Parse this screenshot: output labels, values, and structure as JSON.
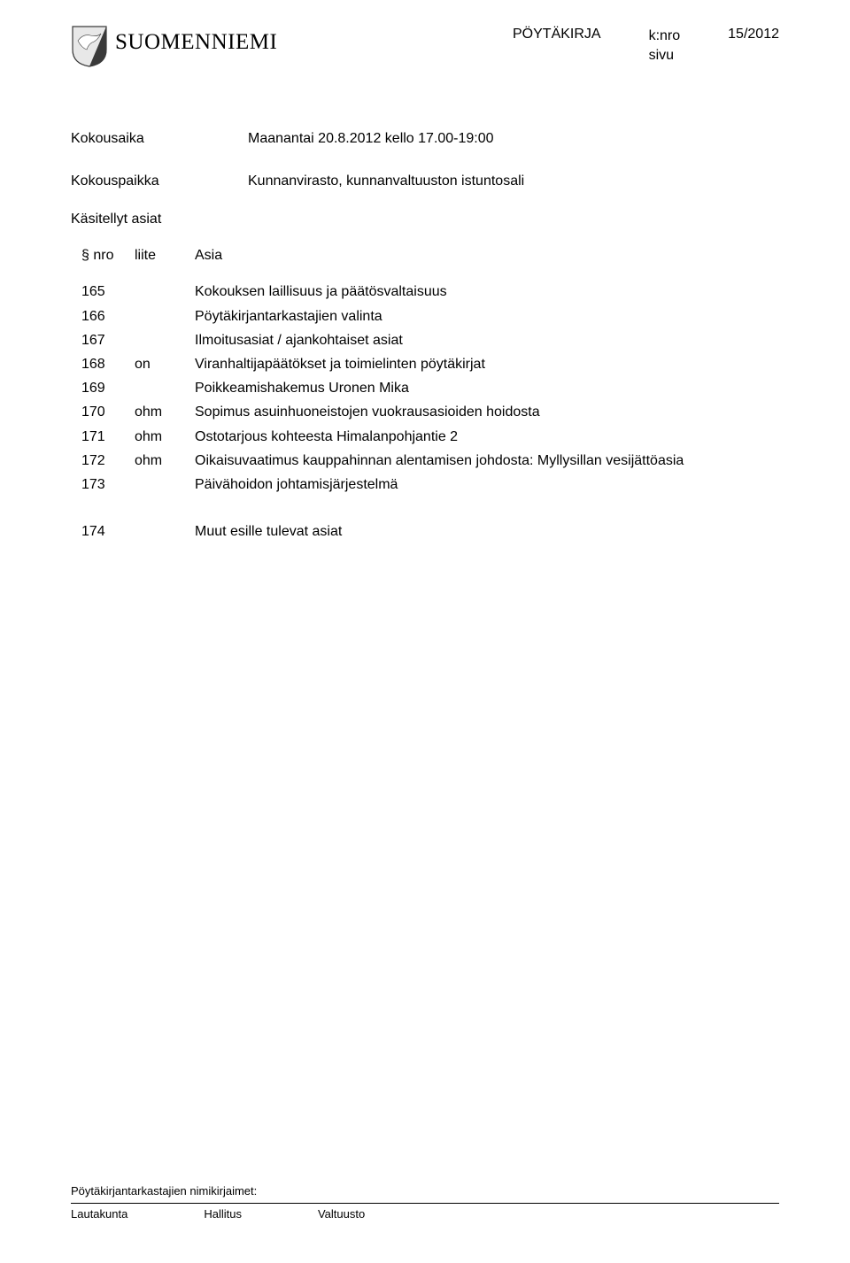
{
  "colors": {
    "text": "#000000",
    "background": "#ffffff",
    "rule": "#000000",
    "crest_dark": "#3a3a3a",
    "crest_light": "#e8e8e8",
    "crest_bird": "#ffffff"
  },
  "header": {
    "wordmark": "SUOMENNIEMI",
    "doc_type": "PÖYTÄKIRJA",
    "knro_label": "k:nro",
    "knro_value": "15/2012",
    "sivu_label": "sivu"
  },
  "meta": {
    "kokousaika_label": "Kokousaika",
    "kokousaika_value": "Maanantai 20.8.2012 kello 17.00-19:00",
    "kokouspaikka_label": "Kokouspaikka",
    "kokouspaikka_value": "Kunnanvirasto, kunnanvaltuuston istuntosali"
  },
  "asiat": {
    "heading": "Käsitellyt asiat",
    "col_nro": "§ nro",
    "col_liite": "liite",
    "col_asia": "Asia",
    "rows": [
      {
        "nro": "165",
        "liite": "",
        "asia": "Kokouksen laillisuus ja päätösvaltaisuus"
      },
      {
        "nro": "166",
        "liite": "",
        "asia": "Pöytäkirjantarkastajien valinta"
      },
      {
        "nro": "167",
        "liite": "",
        "asia": "Ilmoitusasiat / ajankohtaiset asiat"
      },
      {
        "nro": "168",
        "liite": "on",
        "asia": "Viranhaltijapäätökset ja toimielinten pöytäkirjat"
      },
      {
        "nro": "169",
        "liite": "",
        "asia": "Poikkeamishakemus Uronen Mika"
      },
      {
        "nro": "170",
        "liite": "ohm",
        "asia": "Sopimus asuinhuoneistojen vuokrausasioiden hoidosta"
      },
      {
        "nro": "171",
        "liite": "ohm",
        "asia": "Ostotarjous kohteesta Himalanpohjantie 2"
      },
      {
        "nro": "172",
        "liite": "ohm",
        "asia": "Oikaisuvaatimus kauppahinnan alentamisen johdosta: Myllysillan vesijättöasia"
      },
      {
        "nro": "173",
        "liite": "",
        "asia": "Päivähoidon johtamisjärjestelmä"
      }
    ],
    "extra_row": {
      "nro": "174",
      "liite": "",
      "asia": "Muut esille tulevat asiat"
    }
  },
  "footer": {
    "caption": "Pöytäkirjantarkastajien nimikirjaimet:",
    "cols": [
      "Lautakunta",
      "Hallitus",
      "Valtuusto"
    ]
  }
}
